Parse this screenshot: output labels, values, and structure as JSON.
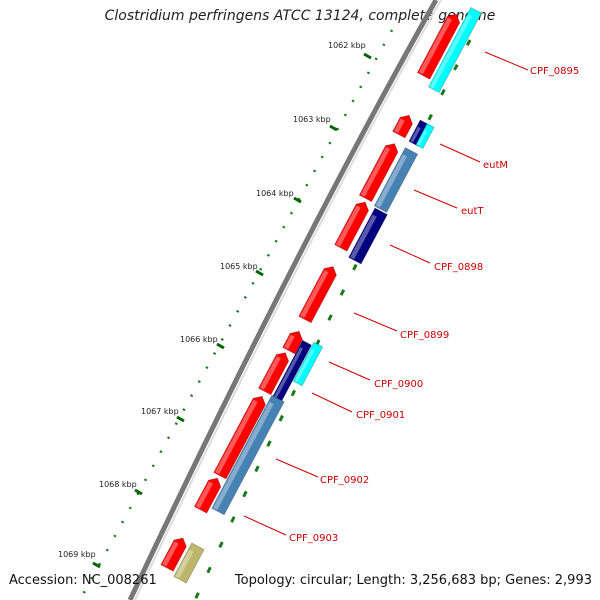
{
  "title": "Clostridium perfringens ATCC 13124, complete genome",
  "footer": {
    "accession": "Accession: NC_008261",
    "summary": "Topology: circular; Length: 3,256,683 bp; Genes: 2,993"
  },
  "ticks": [
    {
      "label": "1062 kbp"
    },
    {
      "label": "1063 kbp"
    },
    {
      "label": "1064 kbp"
    },
    {
      "label": "1065 kbp"
    },
    {
      "label": "1066 kbp"
    },
    {
      "label": "1067 kbp"
    },
    {
      "label": "1068 kbp"
    },
    {
      "label": "1069 kbp"
    }
  ],
  "gene_labels": [
    {
      "name": "CPF_0895"
    },
    {
      "name": "eutM"
    },
    {
      "name": "eutT"
    },
    {
      "name": "CPF_0898"
    },
    {
      "name": "CPF_0899"
    },
    {
      "name": "CPF_0900"
    },
    {
      "name": "CPF_0901"
    },
    {
      "name": "CPF_0902"
    },
    {
      "name": "CPF_0903"
    }
  ],
  "colors": {
    "cds": "#ff0000",
    "cyan": "#00ffff",
    "navy": "#000080",
    "steel": "#4682b4",
    "khaki": "#bdb76b",
    "backbone": "#888888",
    "tick": "#006400",
    "label": "#cc0000"
  }
}
